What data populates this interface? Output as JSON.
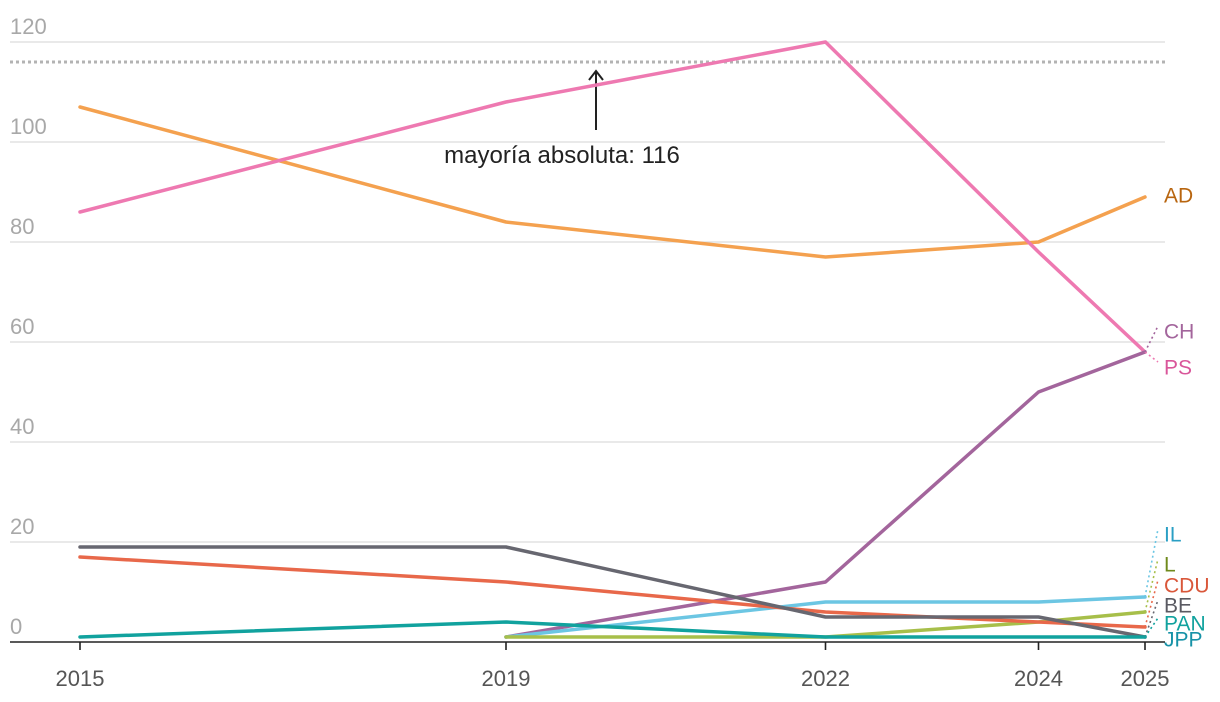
{
  "chart_data": {
    "type": "line",
    "title": "",
    "xlabel": "",
    "ylabel": "",
    "x": [
      2015,
      2019,
      2022,
      2024,
      2025
    ],
    "x_tick_labels": [
      "2015",
      "2019",
      "2022",
      "2024",
      "2025"
    ],
    "y_ticks": [
      0,
      20,
      40,
      60,
      80,
      100,
      120
    ],
    "y_tick_labels": [
      "0",
      "20",
      "40",
      "60",
      "80",
      "100",
      "120"
    ],
    "ylim": [
      0,
      120
    ],
    "grid": true,
    "majority_line": {
      "value": 116,
      "label": "mayoría absoluta: 116"
    },
    "series": [
      {
        "name": "AD",
        "color": "#f4a14f",
        "label_color": "#b8650f",
        "values": [
          107,
          84,
          77,
          80,
          89
        ]
      },
      {
        "name": "PS",
        "color": "#ee79b1",
        "label_color": "#d9569a",
        "values": [
          86,
          108,
          120,
          78,
          58
        ]
      },
      {
        "name": "CH",
        "color": "#a3659c",
        "label_color": "#a3659c",
        "values": [
          null,
          1,
          12,
          50,
          58
        ]
      },
      {
        "name": "IL",
        "color": "#6cc6e3",
        "label_color": "#2a9fc4",
        "values": [
          null,
          1,
          8,
          8,
          9
        ]
      },
      {
        "name": "L",
        "color": "#a7bf4a",
        "label_color": "#6f8a1c",
        "values": [
          null,
          1,
          1,
          4,
          6
        ]
      },
      {
        "name": "CDU",
        "color": "#e8684a",
        "label_color": "#d9573a",
        "values": [
          17,
          12,
          6,
          4,
          3
        ]
      },
      {
        "name": "BE",
        "color": "#676770",
        "label_color": "#5a5a62",
        "values": [
          19,
          19,
          5,
          5,
          1
        ]
      },
      {
        "name": "PAN",
        "color": "#11a29e",
        "label_color": "#11a29e",
        "values": [
          1,
          4,
          1,
          1,
          1
        ]
      },
      {
        "name": "JPP",
        "color": "#1792a7",
        "label_color": "#1792a7",
        "values": [
          null,
          null,
          null,
          null,
          0
        ]
      }
    ]
  }
}
